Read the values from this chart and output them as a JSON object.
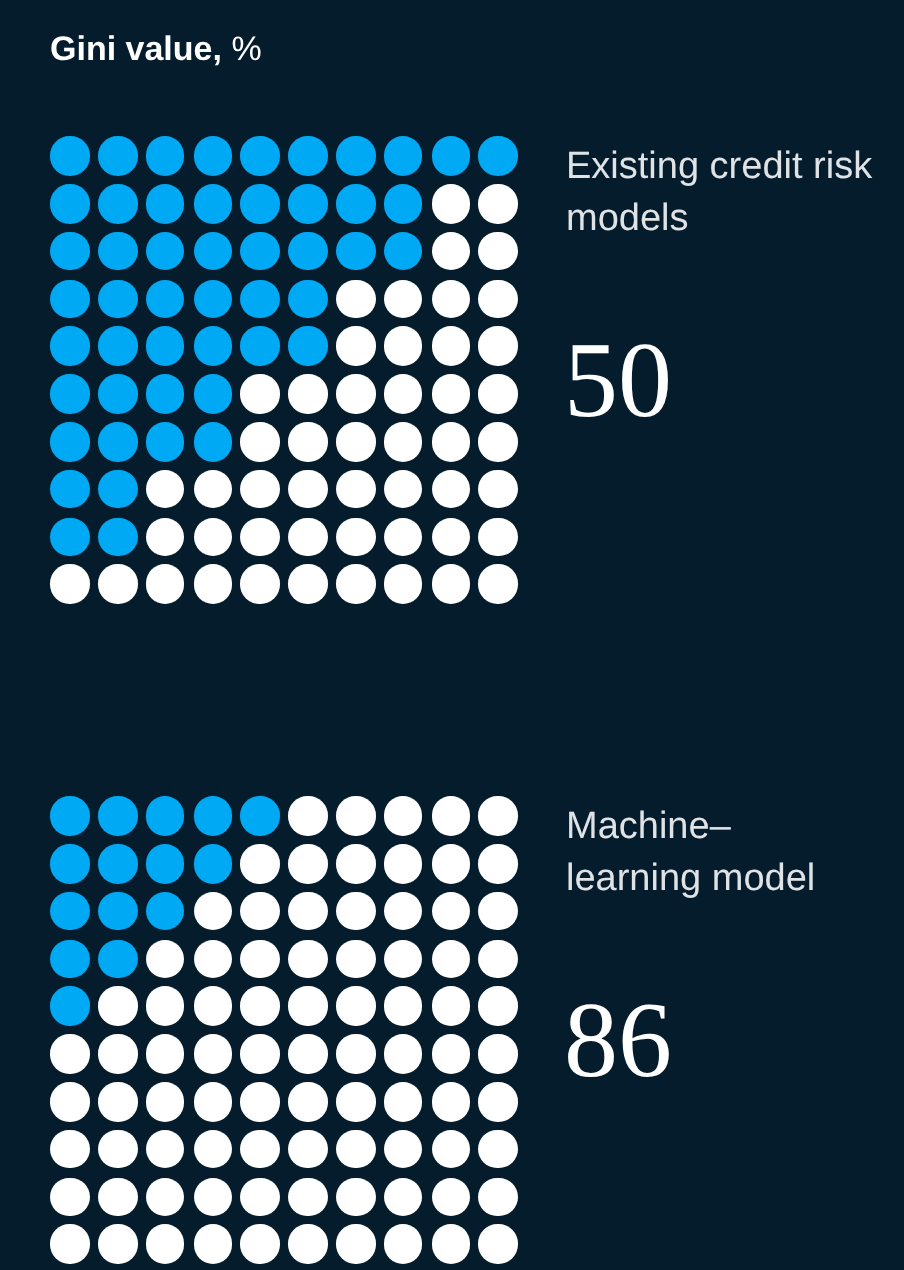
{
  "chart_data": {
    "type": "other",
    "title": "Gini value, %",
    "categories": [
      "Existing credit risk models",
      "Machine–learning model"
    ],
    "values": [
      50,
      86
    ],
    "data_labels": true
  }
}
